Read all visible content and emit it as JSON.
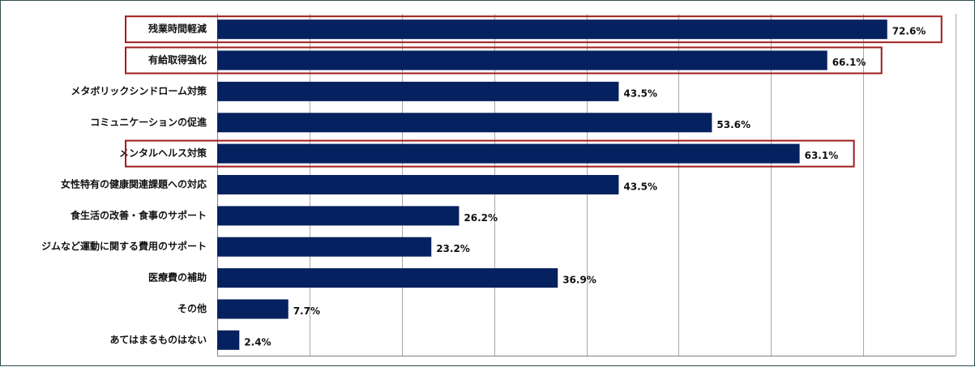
{
  "chart_data": {
    "type": "bar",
    "orientation": "horizontal",
    "categories": [
      "残業時間軽減",
      "有給取得強化",
      "メタボリックシンドローム対策",
      "コミュニケーションの促進",
      "メンタルヘルス対策",
      "女性特有の健康関連課題への対応",
      "食生活の改善・食事のサポート",
      "ジムなど運動に関する費用のサポート",
      "医療費の補助",
      "その他",
      "あてはまるものはない"
    ],
    "values": [
      72.6,
      66.1,
      43.5,
      53.6,
      63.1,
      43.5,
      26.2,
      23.2,
      36.9,
      7.7,
      2.4
    ],
    "value_labels": [
      "72.6%",
      "66.1%",
      "43.5%",
      "53.6%",
      "63.1%",
      "43.5%",
      "26.2%",
      "23.2%",
      "36.9%",
      "7.7%",
      "2.4%"
    ],
    "highlighted": [
      "残業時間軽減",
      "有給取得強化",
      "メンタルヘルス対策"
    ],
    "xlim": [
      0,
      80
    ],
    "grid": true,
    "title": "",
    "xlabel": "",
    "ylabel": "",
    "colors": {
      "bar": "#06215f",
      "highlight_box": "#a01c1c",
      "grid": "#a9a9a9",
      "axis": "#808080"
    }
  }
}
